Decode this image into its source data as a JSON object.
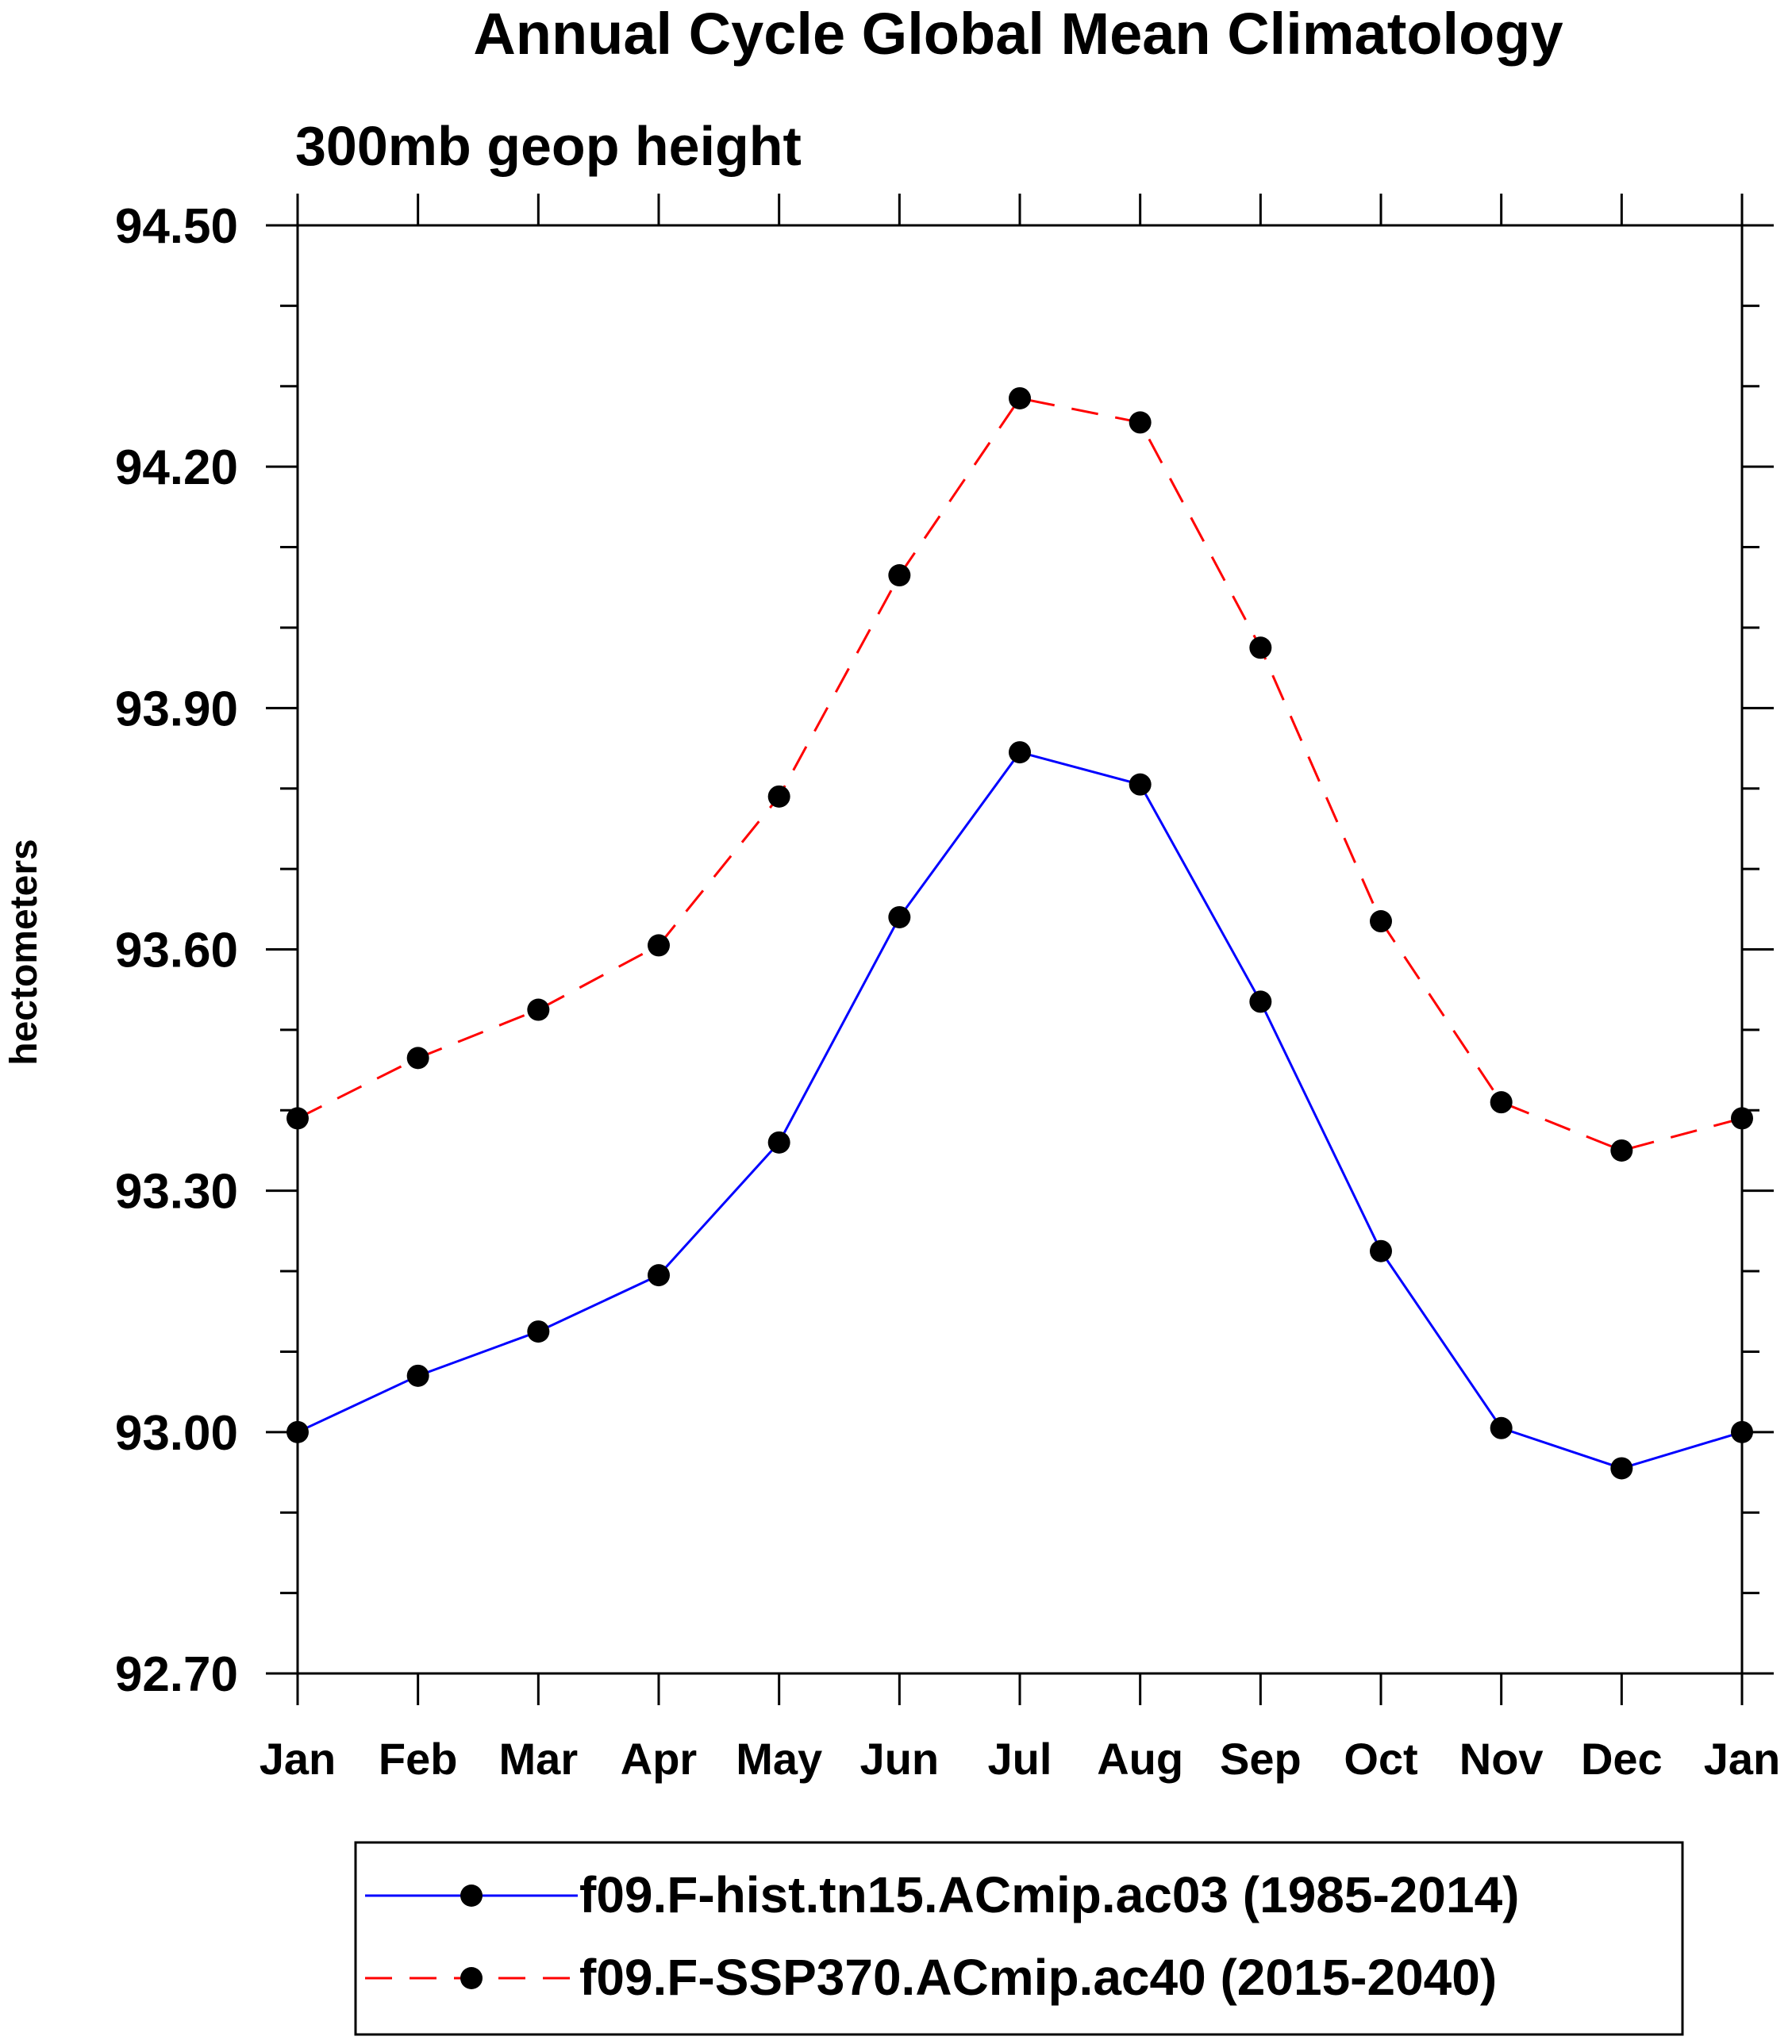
{
  "chart_data": {
    "type": "line",
    "title": "Annual Cycle Global Mean Climatology",
    "subtitle": "300mb geop height",
    "xlabel": "",
    "ylabel": "hectometers",
    "categories": [
      "Jan",
      "Feb",
      "Mar",
      "Apr",
      "May",
      "Jun",
      "Jul",
      "Aug",
      "Sep",
      "Oct",
      "Nov",
      "Dec",
      "Jan"
    ],
    "ylim": [
      92.7,
      94.5
    ],
    "yticks": [
      "94.50",
      "94.20",
      "93.90",
      "93.60",
      "93.30",
      "93.00",
      "92.70"
    ],
    "grid": false,
    "legend_position": "bottom",
    "series": [
      {
        "name": "f09.F-hist.tn15.ACmip.ac03 (1985-2014)",
        "color": "#0000ff",
        "dash": "solid",
        "marker": "filled-circle",
        "values": [
          93.0,
          93.07,
          93.125,
          93.195,
          93.36,
          93.64,
          93.845,
          93.805,
          93.535,
          93.225,
          93.005,
          92.955,
          93.0
        ]
      },
      {
        "name": "f09.F-SSP370.ACmip.ac40 (2015-2040)",
        "color": "#ff0000",
        "dash": "dashed",
        "marker": "filled-circle",
        "values": [
          93.39,
          93.465,
          93.525,
          93.605,
          93.79,
          94.065,
          94.285,
          94.255,
          93.975,
          93.635,
          93.41,
          93.35,
          93.39
        ]
      }
    ]
  }
}
